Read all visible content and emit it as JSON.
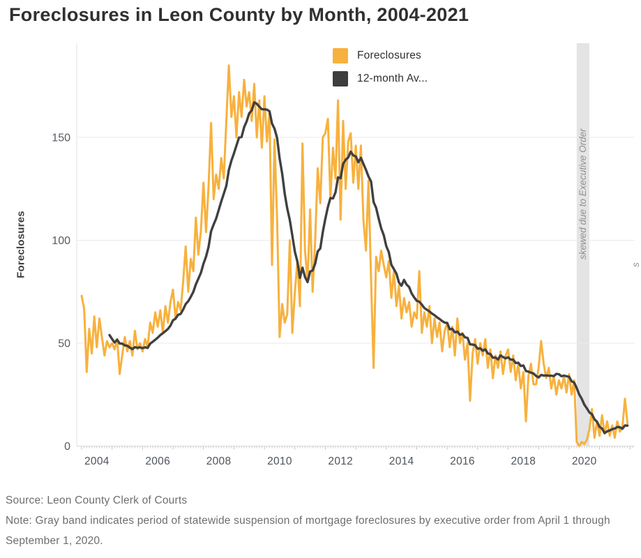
{
  "title": "Foreclosures in Leon County by Month, 2004-2021",
  "legend": {
    "items": [
      {
        "label": "Foreclosures",
        "color": "#F7B13E"
      },
      {
        "label": "12-month Av...",
        "color": "#3E3E40"
      }
    ]
  },
  "annotation": {
    "band_label": "skewed due to Executive Order",
    "edge_label": "s"
  },
  "footer": {
    "source": "Source: Leon County Clerk of Courts",
    "note": "Note: Gray band indicates period of statewide suspension of mortgage foreclosures by executive order from April 1 through September 1, 2020."
  },
  "chart_data": {
    "type": "line",
    "title": "Foreclosures in Leon County by Month, 2004-2021",
    "xlabel": "",
    "ylabel": "Foreclosures",
    "frequency": "monthly",
    "x_start": "2004-01",
    "x_end": "2021-12",
    "ylim": [
      0,
      196
    ],
    "y_ticks": [
      0,
      50,
      100,
      150
    ],
    "x_tick_years": [
      2004,
      2006,
      2008,
      2010,
      2012,
      2014,
      2016,
      2018,
      2020
    ],
    "grid": "horizontal",
    "legend_position": "top-center-inside",
    "gray_band": {
      "from": "2020-04",
      "to": "2020-09",
      "color": "#e4e4e4",
      "label": "skewed due to Executive Order"
    },
    "series": [
      {
        "name": "Foreclosures",
        "color": "#F7B13E",
        "values": [
          73,
          67,
          36,
          57,
          45,
          63,
          48,
          62,
          53,
          44,
          51,
          48,
          50,
          47,
          52,
          35,
          44,
          53,
          46,
          51,
          44,
          56,
          47,
          50,
          46,
          52,
          48,
          60,
          55,
          65,
          58,
          66,
          55,
          68,
          60,
          70,
          76,
          62,
          70,
          66,
          80,
          97,
          75,
          91,
          85,
          111,
          93,
          105,
          128,
          104,
          126,
          157,
          120,
          132,
          125,
          140,
          130,
          158,
          185,
          160,
          170,
          150,
          172,
          160,
          178,
          165,
          172,
          158,
          176,
          150,
          168,
          145,
          170,
          148,
          162,
          88,
          149,
          110,
          53,
          69,
          60,
          64,
          100,
          55,
          75,
          90,
          68,
          147,
          95,
          80,
          115,
          75,
          100,
          135,
          118,
          150,
          152,
          159,
          120,
          145,
          130,
          168,
          110,
          158,
          125,
          148,
          152,
          128,
          146,
          125,
          146,
          110,
          95,
          129,
          81,
          38,
          92,
          85,
          95,
          88,
          82,
          90,
          72,
          85,
          68,
          78,
          62,
          72,
          65,
          70,
          58,
          65,
          62,
          85,
          55,
          65,
          58,
          68,
          50,
          62,
          53,
          60,
          46,
          56,
          60,
          48,
          58,
          44,
          62,
          50,
          55,
          42,
          50,
          22,
          45,
          52,
          40,
          50,
          44,
          52,
          38,
          47,
          33,
          44,
          38,
          46,
          35,
          44,
          47,
          36,
          44,
          32,
          40,
          28,
          36,
          12,
          34,
          40,
          30,
          30,
          38,
          51,
          40,
          33,
          38,
          28,
          34,
          25,
          32,
          28,
          34,
          26,
          35,
          25,
          32,
          2,
          0,
          2,
          1,
          3,
          8,
          18,
          4,
          12,
          5,
          15,
          6,
          12,
          5,
          10,
          4,
          12,
          7,
          9,
          23,
          11
        ]
      },
      {
        "name": "12-month Av...",
        "color": "#404040",
        "derived": "trailing 12-month average of the Foreclosures series, plotted from 2004-12 onward"
      }
    ]
  }
}
